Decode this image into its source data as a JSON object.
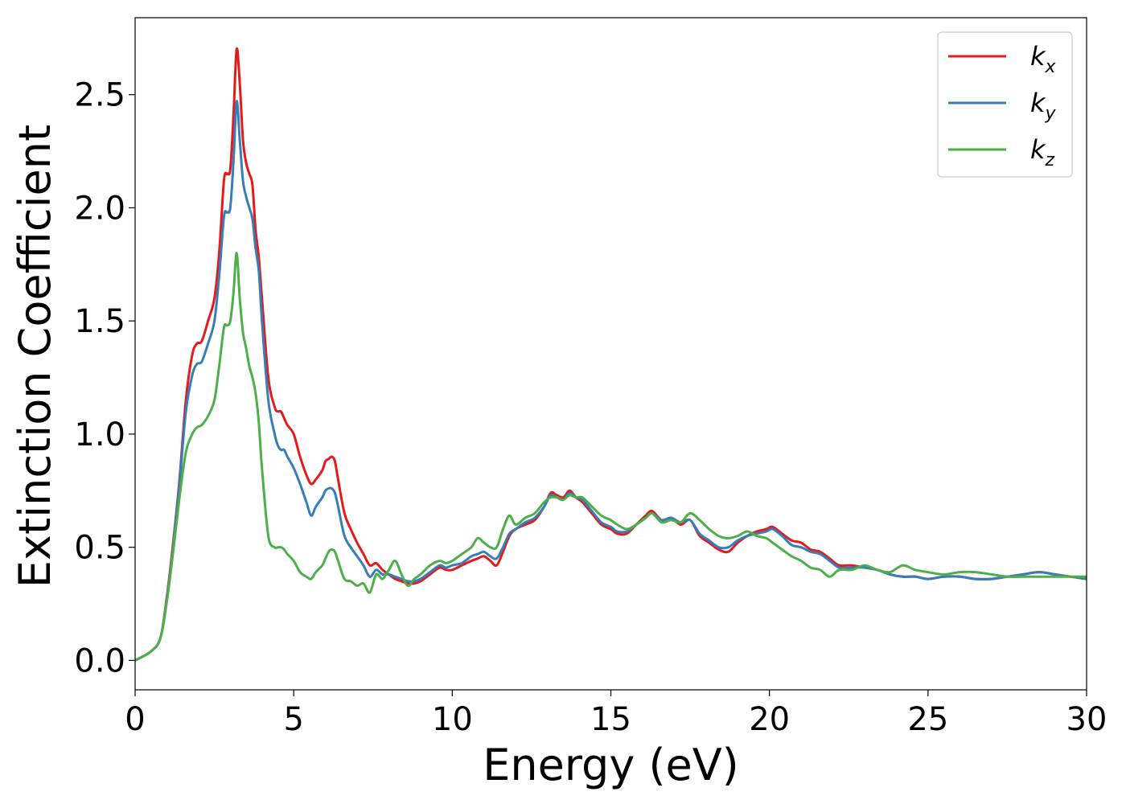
{
  "chart_data": {
    "type": "line",
    "xlabel": "Energy (eV)",
    "ylabel": "Extinction Coefficient",
    "xlim": [
      0,
      30
    ],
    "ylim": [
      -0.13,
      2.84
    ],
    "xticks": [
      0,
      5,
      10,
      15,
      20,
      25,
      30
    ],
    "xtick_labels": [
      "0",
      "5",
      "10",
      "15",
      "20",
      "25",
      "30"
    ],
    "yticks": [
      0.0,
      0.5,
      1.0,
      1.5,
      2.0,
      2.5
    ],
    "ytick_labels": [
      "0.0",
      "0.5",
      "1.0",
      "1.5",
      "2.0",
      "2.5"
    ],
    "grid": false,
    "legend_position": "top-right",
    "series": [
      {
        "name": "k",
        "subscript": "x",
        "color": "#e41a1c",
        "x": [
          0,
          0.5,
          0.8,
          1.0,
          1.2,
          1.4,
          1.6,
          1.8,
          1.95,
          2.1,
          2.3,
          2.5,
          2.65,
          2.8,
          2.9,
          3.0,
          3.1,
          3.2,
          3.3,
          3.4,
          3.5,
          3.6,
          3.7,
          3.8,
          3.9,
          4.0,
          4.2,
          4.4,
          4.5,
          4.6,
          4.7,
          4.8,
          5.0,
          5.2,
          5.4,
          5.55,
          5.7,
          5.9,
          6.0,
          6.1,
          6.2,
          6.3,
          6.4,
          6.6,
          6.8,
          7.0,
          7.2,
          7.4,
          7.6,
          7.8,
          8.0,
          8.2,
          8.4,
          8.6,
          8.8,
          9.0,
          9.3,
          9.6,
          9.8,
          10.0,
          10.3,
          10.6,
          10.8,
          11.0,
          11.2,
          11.4,
          11.6,
          11.8,
          12.0,
          12.3,
          12.6,
          12.9,
          13.1,
          13.3,
          13.5,
          13.7,
          13.9,
          14.1,
          14.4,
          14.7,
          15.0,
          15.2,
          15.5,
          15.8,
          16.1,
          16.3,
          16.6,
          16.9,
          17.2,
          17.5,
          17.8,
          18.1,
          18.4,
          18.7,
          19.0,
          19.3,
          19.6,
          19.9,
          20.1,
          20.4,
          20.7,
          21.0,
          21.3,
          21.6,
          21.9,
          22.2,
          22.6,
          23.0,
          23.4,
          23.8,
          24.2,
          24.6,
          25.0,
          25.5,
          26.0,
          26.5,
          27.0,
          27.5,
          28.0,
          28.5,
          29.0,
          29.5,
          30.0
        ],
        "y": [
          0.0,
          0.04,
          0.1,
          0.28,
          0.52,
          0.8,
          1.15,
          1.35,
          1.4,
          1.41,
          1.5,
          1.6,
          1.8,
          2.12,
          2.15,
          2.17,
          2.4,
          2.7,
          2.55,
          2.3,
          2.2,
          2.15,
          2.1,
          1.9,
          1.78,
          1.6,
          1.25,
          1.12,
          1.1,
          1.1,
          1.07,
          1.04,
          1.0,
          0.9,
          0.82,
          0.78,
          0.8,
          0.84,
          0.88,
          0.89,
          0.9,
          0.88,
          0.8,
          0.65,
          0.58,
          0.52,
          0.47,
          0.42,
          0.43,
          0.4,
          0.38,
          0.36,
          0.35,
          0.34,
          0.34,
          0.35,
          0.38,
          0.41,
          0.4,
          0.4,
          0.42,
          0.44,
          0.45,
          0.46,
          0.44,
          0.42,
          0.48,
          0.55,
          0.58,
          0.6,
          0.62,
          0.68,
          0.74,
          0.73,
          0.72,
          0.75,
          0.72,
          0.7,
          0.65,
          0.6,
          0.58,
          0.56,
          0.56,
          0.6,
          0.64,
          0.66,
          0.62,
          0.63,
          0.6,
          0.62,
          0.55,
          0.52,
          0.49,
          0.48,
          0.52,
          0.55,
          0.57,
          0.58,
          0.59,
          0.56,
          0.53,
          0.52,
          0.49,
          0.48,
          0.45,
          0.42,
          0.42,
          0.41,
          0.4,
          0.38,
          0.37,
          0.37,
          0.36,
          0.37,
          0.37,
          0.36,
          0.36,
          0.37,
          0.38,
          0.39,
          0.38,
          0.37,
          0.36
        ]
      },
      {
        "name": "k",
        "subscript": "y",
        "color": "#377eb8",
        "x": [
          0,
          0.5,
          0.8,
          1.0,
          1.2,
          1.4,
          1.6,
          1.8,
          1.95,
          2.1,
          2.3,
          2.5,
          2.65,
          2.8,
          2.9,
          3.0,
          3.1,
          3.2,
          3.3,
          3.4,
          3.5,
          3.6,
          3.7,
          3.8,
          3.9,
          4.0,
          4.2,
          4.4,
          4.5,
          4.6,
          4.7,
          4.8,
          5.0,
          5.2,
          5.4,
          5.55,
          5.7,
          5.9,
          6.0,
          6.1,
          6.2,
          6.3,
          6.4,
          6.6,
          6.8,
          7.0,
          7.2,
          7.4,
          7.6,
          7.8,
          8.0,
          8.2,
          8.4,
          8.6,
          8.8,
          9.0,
          9.3,
          9.6,
          9.8,
          10.0,
          10.3,
          10.6,
          10.8,
          11.0,
          11.2,
          11.4,
          11.6,
          11.8,
          12.0,
          12.3,
          12.6,
          12.9,
          13.1,
          13.3,
          13.5,
          13.7,
          13.9,
          14.1,
          14.4,
          14.7,
          15.0,
          15.2,
          15.5,
          15.8,
          16.1,
          16.3,
          16.6,
          16.9,
          17.2,
          17.5,
          17.8,
          18.1,
          18.4,
          18.7,
          19.0,
          19.3,
          19.6,
          19.9,
          20.1,
          20.4,
          20.7,
          21.0,
          21.3,
          21.6,
          21.9,
          22.2,
          22.6,
          23.0,
          23.4,
          23.8,
          24.2,
          24.6,
          25.0,
          25.5,
          26.0,
          26.5,
          27.0,
          27.5,
          28.0,
          28.5,
          29.0,
          29.5,
          30.0
        ],
        "y": [
          0.0,
          0.04,
          0.1,
          0.27,
          0.5,
          0.78,
          1.1,
          1.26,
          1.31,
          1.32,
          1.4,
          1.5,
          1.7,
          1.96,
          1.98,
          2.0,
          2.2,
          2.47,
          2.3,
          2.12,
          2.05,
          2.0,
          1.95,
          1.82,
          1.72,
          1.5,
          1.15,
          1.0,
          0.95,
          0.93,
          0.93,
          0.9,
          0.85,
          0.78,
          0.7,
          0.64,
          0.68,
          0.72,
          0.75,
          0.76,
          0.76,
          0.74,
          0.68,
          0.55,
          0.5,
          0.46,
          0.42,
          0.37,
          0.4,
          0.38,
          0.38,
          0.37,
          0.36,
          0.35,
          0.35,
          0.36,
          0.39,
          0.42,
          0.41,
          0.42,
          0.43,
          0.46,
          0.47,
          0.48,
          0.46,
          0.45,
          0.5,
          0.56,
          0.58,
          0.61,
          0.63,
          0.68,
          0.73,
          0.72,
          0.71,
          0.74,
          0.72,
          0.71,
          0.66,
          0.61,
          0.59,
          0.57,
          0.57,
          0.6,
          0.63,
          0.65,
          0.62,
          0.63,
          0.61,
          0.62,
          0.56,
          0.53,
          0.5,
          0.5,
          0.53,
          0.55,
          0.56,
          0.57,
          0.58,
          0.55,
          0.51,
          0.5,
          0.48,
          0.47,
          0.44,
          0.41,
          0.41,
          0.41,
          0.4,
          0.38,
          0.37,
          0.37,
          0.36,
          0.37,
          0.37,
          0.36,
          0.36,
          0.37,
          0.38,
          0.39,
          0.38,
          0.37,
          0.36
        ]
      },
      {
        "name": "k",
        "subscript": "z",
        "color": "#4daf4a",
        "x": [
          0,
          0.5,
          0.8,
          1.0,
          1.2,
          1.4,
          1.6,
          1.8,
          1.95,
          2.1,
          2.3,
          2.5,
          2.65,
          2.8,
          2.9,
          3.0,
          3.1,
          3.2,
          3.3,
          3.4,
          3.5,
          3.6,
          3.7,
          3.8,
          3.9,
          4.0,
          4.2,
          4.4,
          4.5,
          4.6,
          4.7,
          4.8,
          5.0,
          5.2,
          5.4,
          5.55,
          5.7,
          5.9,
          6.0,
          6.1,
          6.2,
          6.3,
          6.4,
          6.6,
          6.8,
          7.0,
          7.2,
          7.4,
          7.6,
          7.8,
          8.0,
          8.2,
          8.4,
          8.6,
          8.8,
          9.0,
          9.3,
          9.6,
          9.8,
          10.0,
          10.3,
          10.6,
          10.8,
          11.0,
          11.2,
          11.4,
          11.6,
          11.8,
          12.0,
          12.3,
          12.6,
          12.9,
          13.1,
          13.3,
          13.5,
          13.7,
          13.9,
          14.1,
          14.4,
          14.7,
          15.0,
          15.2,
          15.5,
          15.8,
          16.1,
          16.3,
          16.6,
          16.9,
          17.2,
          17.5,
          17.8,
          18.1,
          18.4,
          18.7,
          19.0,
          19.3,
          19.6,
          19.9,
          20.1,
          20.4,
          20.7,
          21.0,
          21.3,
          21.6,
          21.9,
          22.2,
          22.6,
          23.0,
          23.4,
          23.8,
          24.2,
          24.6,
          25.0,
          25.5,
          26.0,
          26.5,
          27.0,
          27.5,
          28.0,
          28.5,
          29.0,
          29.5,
          30.0
        ],
        "y": [
          0.0,
          0.04,
          0.1,
          0.26,
          0.48,
          0.72,
          0.92,
          1.0,
          1.03,
          1.04,
          1.08,
          1.15,
          1.3,
          1.47,
          1.48,
          1.5,
          1.62,
          1.8,
          1.6,
          1.45,
          1.38,
          1.3,
          1.25,
          1.18,
          1.05,
          0.85,
          0.55,
          0.5,
          0.5,
          0.5,
          0.49,
          0.47,
          0.44,
          0.39,
          0.37,
          0.36,
          0.39,
          0.42,
          0.45,
          0.48,
          0.49,
          0.48,
          0.44,
          0.36,
          0.35,
          0.33,
          0.34,
          0.3,
          0.38,
          0.36,
          0.4,
          0.44,
          0.38,
          0.33,
          0.36,
          0.38,
          0.42,
          0.44,
          0.43,
          0.44,
          0.47,
          0.5,
          0.54,
          0.52,
          0.5,
          0.5,
          0.58,
          0.64,
          0.6,
          0.63,
          0.65,
          0.7,
          0.72,
          0.72,
          0.71,
          0.73,
          0.72,
          0.72,
          0.68,
          0.64,
          0.62,
          0.6,
          0.58,
          0.6,
          0.63,
          0.65,
          0.61,
          0.62,
          0.61,
          0.65,
          0.62,
          0.58,
          0.55,
          0.54,
          0.55,
          0.57,
          0.55,
          0.54,
          0.52,
          0.49,
          0.46,
          0.44,
          0.41,
          0.4,
          0.37,
          0.4,
          0.4,
          0.42,
          0.4,
          0.39,
          0.42,
          0.4,
          0.39,
          0.38,
          0.39,
          0.39,
          0.38,
          0.37,
          0.37,
          0.37,
          0.37,
          0.37,
          0.37
        ]
      }
    ]
  }
}
